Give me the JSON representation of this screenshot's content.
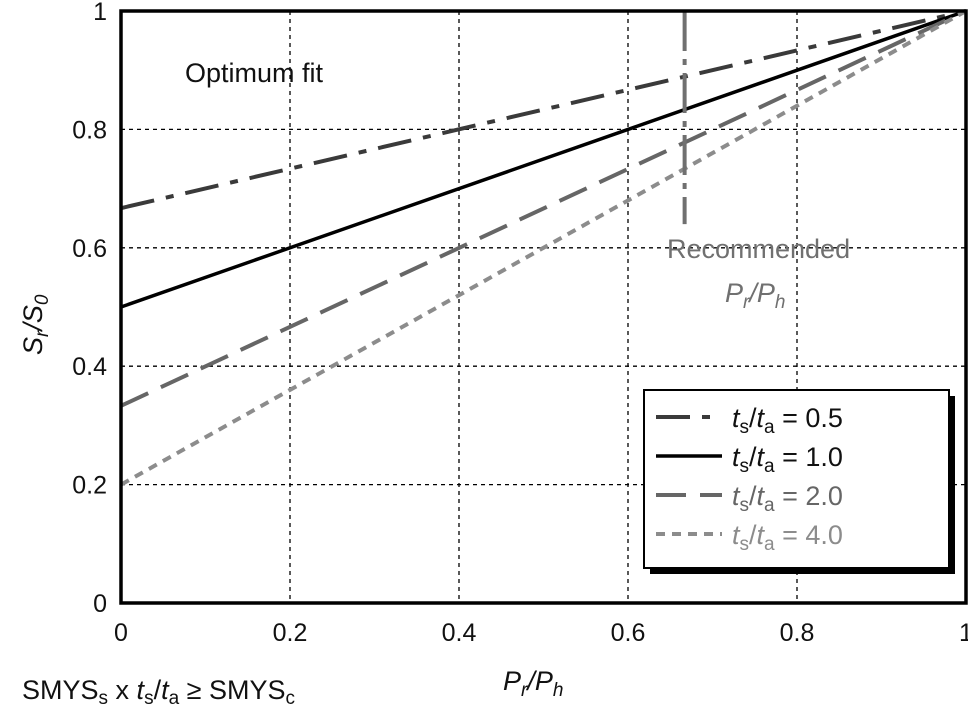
{
  "chart_data": {
    "type": "line",
    "title": "",
    "xlabel": "P_r/P_h",
    "ylabel": "S_r/S_0",
    "xlim": [
      0,
      1
    ],
    "ylim": [
      0,
      1
    ],
    "x_ticks": [
      "0",
      "0.2",
      "0.4",
      "0.6",
      "0.8",
      "1"
    ],
    "y_ticks": [
      "0",
      "0.2",
      "0.4",
      "0.6",
      "0.8",
      "1"
    ],
    "grid": true,
    "x": [
      0,
      1
    ],
    "series": [
      {
        "name": "ts/ta = 0.5",
        "legend_prefix": "t",
        "legend_s_sub": "s",
        "legend_a_sub": "a",
        "legend_value": "= 0.5",
        "values": [
          0.667,
          1.0
        ],
        "color": "#3a3a3a",
        "style": "dash-dot"
      },
      {
        "name": "ts/ta = 1.0",
        "legend_prefix": "t",
        "legend_s_sub": "s",
        "legend_a_sub": "a",
        "legend_value": "= 1.0",
        "values": [
          0.5,
          1.0
        ],
        "color": "#000000",
        "style": "solid"
      },
      {
        "name": "ts/ta = 2.0",
        "legend_prefix": "t",
        "legend_s_sub": "s",
        "legend_a_sub": "a",
        "legend_value": "= 2.0",
        "values": [
          0.333,
          1.0
        ],
        "color": "#666666",
        "style": "dashed"
      },
      {
        "name": "ts/ta = 4.0",
        "legend_prefix": "t",
        "legend_s_sub": "s",
        "legend_a_sub": "a",
        "legend_value": "= 4.0",
        "values": [
          0.2,
          1.0
        ],
        "color": "#8c8c8c",
        "style": "dotted"
      }
    ],
    "recommended": {
      "x": 0.667,
      "y_range": [
        0.64,
        1.0
      ],
      "label_line1": "Recommended",
      "label_line2_main": "P",
      "label_line2_sub1": "r",
      "label_line2_slash": "/P",
      "label_line2_sub2": "h",
      "color": "#707070"
    },
    "annotation": "Optimum fit",
    "legend_position": "bottom-right",
    "bottom_note": {
      "part1": "SMYS",
      "sub1": "s",
      "part2": " x ",
      "t1": "t",
      "sub2": "s",
      "slash": "/",
      "t2": "t",
      "sub3": "a",
      "part3": " ≥ SMYS",
      "sub4": "c"
    },
    "xlabel_parts": {
      "main": "P",
      "sub1": "r",
      "slash": "/P",
      "sub2": "h"
    },
    "ylabel_parts": {
      "main": "S",
      "sub1": "r",
      "slash": "/S",
      "sub2": "0"
    }
  }
}
